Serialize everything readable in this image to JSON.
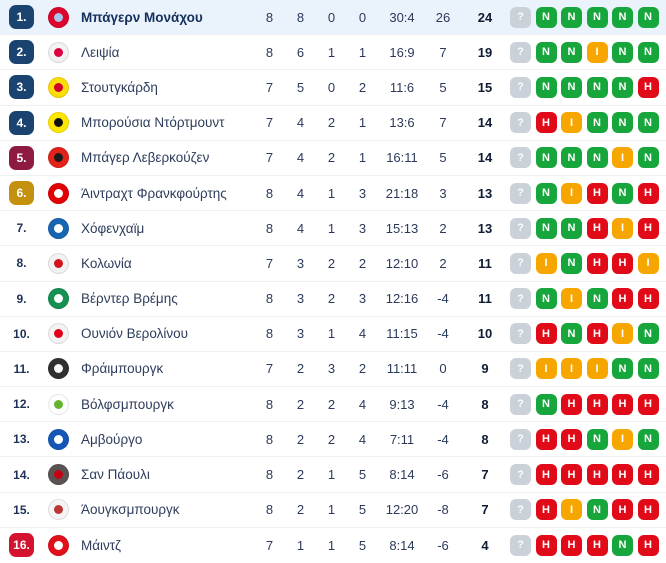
{
  "highlight_row_bg": "#eaf2fb",
  "zone_colors": {
    "blue": "#1b4370",
    "maroon": "#8e1a42",
    "gold": "#c3910e",
    "red": "#d31330"
  },
  "form_colors": {
    "win": "#17a63b",
    "draw": "#f7a600",
    "loss": "#e00a18",
    "unknown": "#cbd1d8"
  },
  "rows": [
    {
      "pos": "1.",
      "zone": "blue",
      "highlighted": true,
      "team": "Μπάγερν Μονάχου",
      "logo": {
        "c1": "#dc052d",
        "c2": "#a8c6ea"
      },
      "played": "8",
      "wins": "8",
      "draws": "0",
      "losses": "0",
      "goals": "30:4",
      "diff": "26",
      "points": "24",
      "form": [
        {
          "letter": "?",
          "type": "unknown"
        },
        {
          "letter": "Ν",
          "type": "win"
        },
        {
          "letter": "Ν",
          "type": "win"
        },
        {
          "letter": "Ν",
          "type": "win"
        },
        {
          "letter": "Ν",
          "type": "win"
        },
        {
          "letter": "Ν",
          "type": "win"
        }
      ]
    },
    {
      "pos": "2.",
      "zone": "blue",
      "highlighted": false,
      "team": "Λειψία",
      "logo": {
        "c1": "#f2f2f2",
        "c2": "#dd013f"
      },
      "played": "8",
      "wins": "6",
      "draws": "1",
      "losses": "1",
      "goals": "16:9",
      "diff": "7",
      "points": "19",
      "form": [
        {
          "letter": "?",
          "type": "unknown"
        },
        {
          "letter": "Ν",
          "type": "win"
        },
        {
          "letter": "Ν",
          "type": "win"
        },
        {
          "letter": "Ι",
          "type": "draw"
        },
        {
          "letter": "Ν",
          "type": "win"
        },
        {
          "letter": "Ν",
          "type": "win"
        }
      ]
    },
    {
      "pos": "3.",
      "zone": "blue",
      "highlighted": false,
      "team": "Στουτγκάρδη",
      "logo": {
        "c1": "#fcdd09",
        "c2": "#d3012a"
      },
      "played": "7",
      "wins": "5",
      "draws": "0",
      "losses": "2",
      "goals": "11:6",
      "diff": "5",
      "points": "15",
      "form": [
        {
          "letter": "?",
          "type": "unknown"
        },
        {
          "letter": "Ν",
          "type": "win"
        },
        {
          "letter": "Ν",
          "type": "win"
        },
        {
          "letter": "Ν",
          "type": "win"
        },
        {
          "letter": "Ν",
          "type": "win"
        },
        {
          "letter": "Η",
          "type": "loss"
        }
      ]
    },
    {
      "pos": "4.",
      "zone": "blue",
      "highlighted": false,
      "team": "Μπορούσια Ντόρτμουντ",
      "logo": {
        "c1": "#ffe600",
        "c2": "#111111"
      },
      "played": "7",
      "wins": "4",
      "draws": "2",
      "losses": "1",
      "goals": "13:6",
      "diff": "7",
      "points": "14",
      "form": [
        {
          "letter": "?",
          "type": "unknown"
        },
        {
          "letter": "Η",
          "type": "loss"
        },
        {
          "letter": "Ι",
          "type": "draw"
        },
        {
          "letter": "Ν",
          "type": "win"
        },
        {
          "letter": "Ν",
          "type": "win"
        },
        {
          "letter": "Ν",
          "type": "win"
        }
      ]
    },
    {
      "pos": "5.",
      "zone": "maroon",
      "highlighted": false,
      "team": "Μπάγερ Λεβερκούζεν",
      "logo": {
        "c1": "#e32219",
        "c2": "#1a1a1a"
      },
      "played": "7",
      "wins": "4",
      "draws": "2",
      "losses": "1",
      "goals": "16:11",
      "diff": "5",
      "points": "14",
      "form": [
        {
          "letter": "?",
          "type": "unknown"
        },
        {
          "letter": "Ν",
          "type": "win"
        },
        {
          "letter": "Ν",
          "type": "win"
        },
        {
          "letter": "Ν",
          "type": "win"
        },
        {
          "letter": "Ι",
          "type": "draw"
        },
        {
          "letter": "Ν",
          "type": "win"
        }
      ]
    },
    {
      "pos": "6.",
      "zone": "gold",
      "highlighted": false,
      "team": "Άιντραχτ Φρανκφούρτης",
      "logo": {
        "c1": "#e00005",
        "c2": "#ffffff"
      },
      "played": "8",
      "wins": "4",
      "draws": "1",
      "losses": "3",
      "goals": "21:18",
      "diff": "3",
      "points": "13",
      "form": [
        {
          "letter": "?",
          "type": "unknown"
        },
        {
          "letter": "Ν",
          "type": "win"
        },
        {
          "letter": "Ι",
          "type": "draw"
        },
        {
          "letter": "Η",
          "type": "loss"
        },
        {
          "letter": "Ν",
          "type": "win"
        },
        {
          "letter": "Η",
          "type": "loss"
        }
      ]
    },
    {
      "pos": "7.",
      "zone": "none",
      "highlighted": false,
      "team": "Χόφενχαϊμ",
      "logo": {
        "c1": "#1866b2",
        "c2": "#ffffff"
      },
      "played": "8",
      "wins": "4",
      "draws": "1",
      "losses": "3",
      "goals": "15:13",
      "diff": "2",
      "points": "13",
      "form": [
        {
          "letter": "?",
          "type": "unknown"
        },
        {
          "letter": "Ν",
          "type": "win"
        },
        {
          "letter": "Ν",
          "type": "win"
        },
        {
          "letter": "Η",
          "type": "loss"
        },
        {
          "letter": "Ι",
          "type": "draw"
        },
        {
          "letter": "Η",
          "type": "loss"
        }
      ]
    },
    {
      "pos": "8.",
      "zone": "none",
      "highlighted": false,
      "team": "Κολωνία",
      "logo": {
        "c1": "#f2f2f2",
        "c2": "#d3121c"
      },
      "played": "7",
      "wins": "3",
      "draws": "2",
      "losses": "2",
      "goals": "12:10",
      "diff": "2",
      "points": "11",
      "form": [
        {
          "letter": "?",
          "type": "unknown"
        },
        {
          "letter": "Ι",
          "type": "draw"
        },
        {
          "letter": "Ν",
          "type": "win"
        },
        {
          "letter": "Η",
          "type": "loss"
        },
        {
          "letter": "Η",
          "type": "loss"
        },
        {
          "letter": "Ι",
          "type": "draw"
        }
      ]
    },
    {
      "pos": "9.",
      "zone": "none",
      "highlighted": false,
      "team": "Βέρντερ Βρέμης",
      "logo": {
        "c1": "#169152",
        "c2": "#ffffff"
      },
      "played": "8",
      "wins": "3",
      "draws": "2",
      "losses": "3",
      "goals": "12:16",
      "diff": "-4",
      "points": "11",
      "form": [
        {
          "letter": "?",
          "type": "unknown"
        },
        {
          "letter": "Ν",
          "type": "win"
        },
        {
          "letter": "Ι",
          "type": "draw"
        },
        {
          "letter": "Ν",
          "type": "win"
        },
        {
          "letter": "Η",
          "type": "loss"
        },
        {
          "letter": "Η",
          "type": "loss"
        }
      ]
    },
    {
      "pos": "10.",
      "zone": "none",
      "highlighted": false,
      "team": "Ουνιόν Βερολίνου",
      "logo": {
        "c1": "#f3f3f3",
        "c2": "#e2001a"
      },
      "played": "8",
      "wins": "3",
      "draws": "1",
      "losses": "4",
      "goals": "11:15",
      "diff": "-4",
      "points": "10",
      "form": [
        {
          "letter": "?",
          "type": "unknown"
        },
        {
          "letter": "Η",
          "type": "loss"
        },
        {
          "letter": "Ν",
          "type": "win"
        },
        {
          "letter": "Η",
          "type": "loss"
        },
        {
          "letter": "Ι",
          "type": "draw"
        },
        {
          "letter": "Ν",
          "type": "win"
        }
      ]
    },
    {
      "pos": "11.",
      "zone": "none",
      "highlighted": false,
      "team": "Φράιμπουργκ",
      "logo": {
        "c1": "#2f2f2f",
        "c2": "#f5f5f5"
      },
      "played": "7",
      "wins": "2",
      "draws": "3",
      "losses": "2",
      "goals": "11:11",
      "diff": "0",
      "points": "9",
      "form": [
        {
          "letter": "?",
          "type": "unknown"
        },
        {
          "letter": "Ι",
          "type": "draw"
        },
        {
          "letter": "Ι",
          "type": "draw"
        },
        {
          "letter": "Ι",
          "type": "draw"
        },
        {
          "letter": "Ν",
          "type": "win"
        },
        {
          "letter": "Ν",
          "type": "win"
        }
      ]
    },
    {
      "pos": "12.",
      "zone": "none",
      "highlighted": false,
      "team": "Βόλφσμπουργκ",
      "logo": {
        "c1": "#ffffff",
        "c2": "#65b32e"
      },
      "played": "8",
      "wins": "2",
      "draws": "2",
      "losses": "4",
      "goals": "9:13",
      "diff": "-4",
      "points": "8",
      "form": [
        {
          "letter": "?",
          "type": "unknown"
        },
        {
          "letter": "Ν",
          "type": "win"
        },
        {
          "letter": "Η",
          "type": "loss"
        },
        {
          "letter": "Η",
          "type": "loss"
        },
        {
          "letter": "Η",
          "type": "loss"
        },
        {
          "letter": "Η",
          "type": "loss"
        }
      ]
    },
    {
      "pos": "13.",
      "zone": "none",
      "highlighted": false,
      "team": "Αμβούργο",
      "logo": {
        "c1": "#1557b8",
        "c2": "#ffffff"
      },
      "played": "8",
      "wins": "2",
      "draws": "2",
      "losses": "4",
      "goals": "7:11",
      "diff": "-4",
      "points": "8",
      "form": [
        {
          "letter": "?",
          "type": "unknown"
        },
        {
          "letter": "Η",
          "type": "loss"
        },
        {
          "letter": "Η",
          "type": "loss"
        },
        {
          "letter": "Ν",
          "type": "win"
        },
        {
          "letter": "Ι",
          "type": "draw"
        },
        {
          "letter": "Ν",
          "type": "win"
        }
      ]
    },
    {
      "pos": "14.",
      "zone": "none",
      "highlighted": false,
      "team": "Σαν Πάουλι",
      "logo": {
        "c1": "#5a5352",
        "c2": "#c80016"
      },
      "played": "8",
      "wins": "2",
      "draws": "1",
      "losses": "5",
      "goals": "8:14",
      "diff": "-6",
      "points": "7",
      "form": [
        {
          "letter": "?",
          "type": "unknown"
        },
        {
          "letter": "Η",
          "type": "loss"
        },
        {
          "letter": "Η",
          "type": "loss"
        },
        {
          "letter": "Η",
          "type": "loss"
        },
        {
          "letter": "Η",
          "type": "loss"
        },
        {
          "letter": "Η",
          "type": "loss"
        }
      ]
    },
    {
      "pos": "15.",
      "zone": "none",
      "highlighted": false,
      "team": "Άουγκσμπουργκ",
      "logo": {
        "c1": "#f5f5f5",
        "c2": "#ba3637"
      },
      "played": "8",
      "wins": "2",
      "draws": "1",
      "losses": "5",
      "goals": "12:20",
      "diff": "-8",
      "points": "7",
      "form": [
        {
          "letter": "?",
          "type": "unknown"
        },
        {
          "letter": "Η",
          "type": "loss"
        },
        {
          "letter": "Ι",
          "type": "draw"
        },
        {
          "letter": "Ν",
          "type": "win"
        },
        {
          "letter": "Η",
          "type": "loss"
        },
        {
          "letter": "Η",
          "type": "loss"
        }
      ]
    },
    {
      "pos": "16.",
      "zone": "red",
      "highlighted": false,
      "team": "Μάιντζ",
      "logo": {
        "c1": "#e1111c",
        "c2": "#ffffff"
      },
      "played": "7",
      "wins": "1",
      "draws": "1",
      "losses": "5",
      "goals": "8:14",
      "diff": "-6",
      "points": "4",
      "form": [
        {
          "letter": "?",
          "type": "unknown"
        },
        {
          "letter": "Η",
          "type": "loss"
        },
        {
          "letter": "Η",
          "type": "loss"
        },
        {
          "letter": "Η",
          "type": "loss"
        },
        {
          "letter": "Ν",
          "type": "win"
        },
        {
          "letter": "Η",
          "type": "loss"
        }
      ]
    }
  ]
}
